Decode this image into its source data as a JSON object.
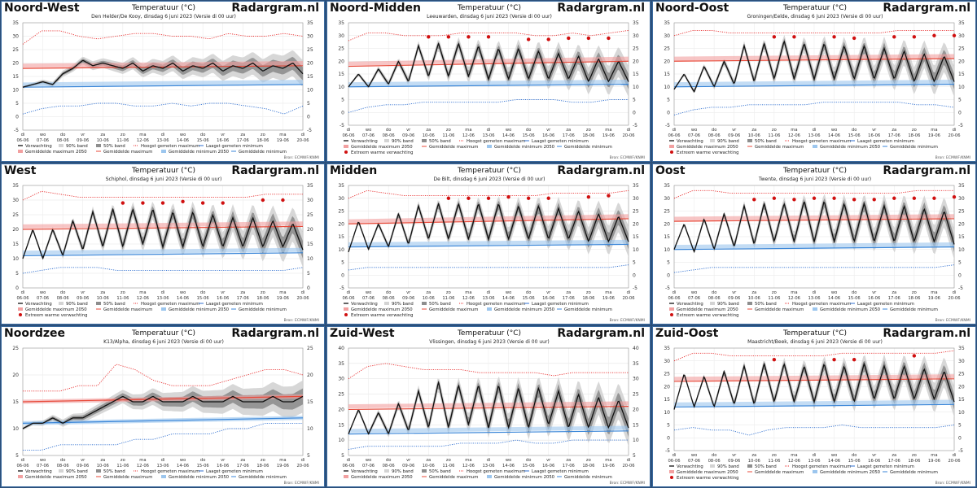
{
  "brand": "Radargram.nl",
  "title": "Temperatuur (°C)",
  "source": "Bron: ECMWF/KNMI",
  "x_days": [
    "di",
    "wo",
    "do",
    "vr",
    "za",
    "zo",
    "ma",
    "di",
    "wo",
    "do",
    "vr",
    "za",
    "zo",
    "ma",
    "di"
  ],
  "x_dates": [
    "06-06",
    "07-06",
    "08-06",
    "09-06",
    "10-06",
    "11-06",
    "12-06",
    "13-06",
    "14-06",
    "15-06",
    "16-06",
    "17-06",
    "18-06",
    "19-06",
    "20-06"
  ],
  "legend_std": [
    "Verwachting",
    "90% band",
    "50% band",
    "Hoogst gemeten maximum",
    "Laagst gemeten minimum",
    "Gemiddelde maximum 2050",
    "Gemiddelde maximum",
    "Gemiddelde minimum 2050",
    "Gemiddelde minimum"
  ],
  "legend_extreme": "Extreem warme verwachting",
  "colors": {
    "forecast": "#111111",
    "band90": "#d3d3d3",
    "band50": "#8e8e8e",
    "record_max": "#e83030",
    "record_min": "#2f6fd0",
    "mean_max": "#e84a3a",
    "mean_max_2050": "#f2a0a0",
    "mean_min": "#3a86d8",
    "mean_min_2050": "#9cc6ee",
    "extreme": "#d01010",
    "frame": "#2b4f7a"
  },
  "panels": [
    {
      "region": "Noord-West",
      "subtitle": "Den Helder/De Kooy, dinsdag 6 juni 2023 (Versie di 00 uur)",
      "ylim": [
        -5,
        35
      ],
      "yticks": [
        -5,
        0,
        5,
        10,
        15,
        20,
        25,
        30,
        35
      ],
      "chart_data": {
        "type": "line",
        "forecast": [
          11,
          12,
          13,
          12,
          16,
          18,
          21,
          19,
          20,
          19,
          18,
          20,
          17,
          19,
          18,
          20,
          17,
          19,
          18,
          20,
          17,
          19,
          18,
          20,
          17,
          19,
          18,
          20,
          16
        ],
        "record_max": [
          27,
          32,
          32,
          30,
          29,
          30,
          31,
          31,
          30,
          30,
          29,
          31,
          30,
          30,
          31,
          30
        ],
        "record_min": [
          1,
          3,
          4,
          4,
          5,
          5,
          4,
          4,
          5,
          4,
          5,
          5,
          4,
          3,
          1,
          4
        ],
        "mean_max": [
          18,
          19
        ],
        "mean_max_2050": [
          19,
          20
        ],
        "mean_min": [
          11,
          12
        ],
        "mean_min_2050": [
          12,
          13
        ],
        "band90_width": [
          0.5,
          5
        ],
        "extreme_points": []
      }
    },
    {
      "region": "Noord-Midden",
      "subtitle": "Leeuwarden, dinsdag 6 juni 2023 (Versie di 00 uur)",
      "ylim": [
        -5,
        35
      ],
      "yticks": [
        -5,
        0,
        5,
        10,
        15,
        20,
        25,
        30,
        35
      ],
      "chart_data": {
        "type": "line",
        "forecast": [
          10,
          15,
          10,
          17,
          11,
          20,
          12,
          26,
          14,
          27,
          14,
          27,
          14,
          26,
          13,
          25,
          13,
          25,
          13,
          24,
          13,
          23,
          13,
          22,
          12,
          21,
          12,
          20,
          12
        ],
        "record_max": [
          28,
          31,
          31,
          30,
          30,
          30,
          31,
          31,
          31,
          31,
          30,
          30,
          31,
          30,
          31,
          32
        ],
        "record_min": [
          0,
          2,
          3,
          3,
          4,
          4,
          4,
          4,
          4,
          5,
          5,
          5,
          4,
          4,
          5,
          5
        ],
        "mean_max": [
          18,
          20
        ],
        "mean_max_2050": [
          19,
          21
        ],
        "mean_min": [
          10,
          11
        ],
        "mean_min_2050": [
          11,
          12
        ],
        "band90_width": [
          0.5,
          6
        ],
        "extreme_points": [
          [
            4,
            29.5
          ],
          [
            5,
            29.5
          ],
          [
            6,
            29.5
          ],
          [
            7,
            29.5
          ],
          [
            9,
            28.5
          ],
          [
            10,
            28.5
          ],
          [
            11,
            29
          ],
          [
            12,
            29
          ],
          [
            13,
            29
          ]
        ]
      }
    },
    {
      "region": "Noord-Oost",
      "subtitle": "Groningen/Eelde, dinsdag 6 juni 2023 (Versie di 00 uur)",
      "ylim": [
        -5,
        35
      ],
      "yticks": [
        -5,
        0,
        5,
        10,
        15,
        20,
        25,
        30,
        35
      ],
      "chart_data": {
        "type": "line",
        "forecast": [
          9,
          15,
          8,
          18,
          10,
          20,
          11,
          26,
          12,
          27,
          13,
          28,
          13,
          27,
          13,
          27,
          13,
          26,
          13,
          26,
          13,
          25,
          13,
          24,
          12,
          23,
          12,
          22,
          12
        ],
        "record_max": [
          30,
          32,
          32,
          31,
          31,
          31,
          31,
          31,
          31,
          31,
          31,
          31,
          32,
          32,
          32,
          32
        ],
        "record_min": [
          -1,
          1,
          2,
          2,
          3,
          3,
          3,
          3,
          4,
          4,
          4,
          4,
          4,
          3,
          3,
          2
        ],
        "mean_max": [
          20,
          21
        ],
        "mean_max_2050": [
          21,
          22
        ],
        "mean_min": [
          10,
          11
        ],
        "mean_min_2050": [
          11,
          12
        ],
        "band90_width": [
          0.5,
          6
        ],
        "extreme_points": [
          [
            5,
            29.5
          ],
          [
            6,
            29.5
          ],
          [
            8,
            29.5
          ],
          [
            9,
            29
          ],
          [
            11,
            29.5
          ],
          [
            12,
            29.5
          ],
          [
            13,
            30
          ],
          [
            14,
            30
          ]
        ]
      }
    },
    {
      "region": "West",
      "subtitle": "Schiphol, dinsdag 6 juni 2023 (Versie di 00 uur)",
      "ylim": [
        0,
        35
      ],
      "yticks": [
        0,
        5,
        10,
        15,
        20,
        25,
        30,
        35
      ],
      "chart_data": {
        "type": "line",
        "forecast": [
          10,
          20,
          10,
          20,
          11,
          23,
          13,
          26,
          14,
          27,
          14,
          27,
          15,
          27,
          14,
          26,
          14,
          26,
          14,
          25,
          14,
          24,
          14,
          24,
          14,
          23,
          14,
          22,
          13
        ],
        "record_max": [
          30,
          33,
          32,
          31,
          31,
          31,
          31,
          31,
          31,
          31,
          31,
          31,
          31,
          32,
          32,
          32
        ],
        "record_min": [
          5,
          6,
          7,
          7,
          7,
          6,
          6,
          6,
          6,
          6,
          6,
          6,
          6,
          6,
          6,
          7
        ],
        "mean_max": [
          20,
          21
        ],
        "mean_max_2050": [
          21,
          22
        ],
        "mean_min": [
          11,
          12
        ],
        "mean_min_2050": [
          12,
          13
        ],
        "band90_width": [
          0.5,
          6
        ],
        "extreme_points": [
          [
            5,
            29
          ],
          [
            6,
            29
          ],
          [
            7,
            29
          ],
          [
            8,
            29.5
          ],
          [
            9,
            29
          ],
          [
            10,
            29
          ],
          [
            12,
            30
          ],
          [
            13,
            30
          ]
        ]
      }
    },
    {
      "region": "Midden",
      "subtitle": "De Bilt, dinsdag 6 juni 2023 (Versie di 00 uur)",
      "ylim": [
        -5,
        35
      ],
      "yticks": [
        -5,
        0,
        5,
        10,
        15,
        20,
        25,
        30,
        35
      ],
      "chart_data": {
        "type": "line",
        "forecast": [
          9,
          21,
          10,
          20,
          11,
          24,
          12,
          27,
          14,
          28,
          14,
          28,
          14,
          28,
          14,
          28,
          14,
          27,
          14,
          27,
          14,
          26,
          14,
          25,
          13,
          24,
          13,
          23,
          13
        ],
        "record_max": [
          30,
          33,
          32,
          31,
          31,
          31,
          31,
          31,
          31,
          31,
          31,
          32,
          32,
          32,
          32,
          33
        ],
        "record_min": [
          2,
          3,
          3,
          3,
          3,
          3,
          3,
          3,
          3,
          3,
          3,
          3,
          3,
          3,
          3,
          4
        ],
        "mean_max": [
          20,
          22
        ],
        "mean_max_2050": [
          21,
          23
        ],
        "mean_min": [
          11,
          12
        ],
        "mean_min_2050": [
          12,
          13
        ],
        "band90_width": [
          0.5,
          6
        ],
        "extreme_points": [
          [
            5,
            30
          ],
          [
            6,
            30
          ],
          [
            7,
            30
          ],
          [
            8,
            30.5
          ],
          [
            9,
            30
          ],
          [
            10,
            30
          ],
          [
            12,
            30.5
          ],
          [
            13,
            31
          ]
        ]
      }
    },
    {
      "region": "Oost",
      "subtitle": "Twente, dinsdag 6 juni 2023 (Versie di 00 uur)",
      "ylim": [
        -5,
        35
      ],
      "yticks": [
        -5,
        0,
        5,
        10,
        15,
        20,
        25,
        30,
        35
      ],
      "chart_data": {
        "type": "line",
        "forecast": [
          10,
          20,
          9,
          22,
          10,
          24,
          11,
          27,
          12,
          28,
          13,
          28,
          13,
          29,
          13,
          29,
          13,
          28,
          13,
          28,
          13,
          27,
          13,
          27,
          13,
          26,
          13,
          25,
          12
        ],
        "record_max": [
          30,
          33,
          33,
          32,
          32,
          32,
          32,
          32,
          32,
          32,
          32,
          32,
          32,
          33,
          33,
          33
        ],
        "record_min": [
          1,
          2,
          3,
          3,
          3,
          3,
          3,
          3,
          3,
          3,
          3,
          3,
          3,
          3,
          3,
          4
        ],
        "mean_max": [
          21,
          22
        ],
        "mean_max_2050": [
          22,
          23
        ],
        "mean_min": [
          10,
          11
        ],
        "mean_min_2050": [
          11,
          12
        ],
        "band90_width": [
          0.5,
          6
        ],
        "extreme_points": [
          [
            4,
            29.5
          ],
          [
            5,
            30
          ],
          [
            6,
            29.5
          ],
          [
            7,
            30
          ],
          [
            8,
            30
          ],
          [
            9,
            29.5
          ],
          [
            10,
            29.5
          ],
          [
            11,
            30
          ],
          [
            12,
            30
          ],
          [
            13,
            30
          ],
          [
            14,
            30.5
          ]
        ]
      }
    },
    {
      "region": "Noordzee",
      "subtitle": "K13/Alpha, dinsdag 6 juni 2023 (Versie di 00 uur)",
      "ylim": [
        5,
        25
      ],
      "yticks": [
        5,
        10,
        15,
        20,
        25
      ],
      "chart_data": {
        "type": "line",
        "forecast": [
          10,
          11,
          11,
          12,
          11,
          12,
          12,
          13,
          14,
          15,
          16,
          15,
          15,
          16,
          15,
          15,
          15,
          16,
          15,
          15,
          15,
          16,
          15,
          15,
          15,
          16,
          15,
          15,
          16
        ],
        "record_max": [
          17,
          17,
          17,
          18,
          18,
          22,
          21,
          19,
          18,
          18,
          18,
          19,
          20,
          21,
          21,
          20
        ],
        "record_min": [
          6,
          6,
          7,
          7,
          7,
          7,
          8,
          8,
          9,
          9,
          9,
          10,
          10,
          11,
          11,
          11
        ],
        "mean_max": [
          15,
          16
        ],
        "mean_max_2050": [
          15,
          16
        ],
        "mean_min": [
          11,
          12
        ],
        "mean_min_2050": [
          11,
          12
        ],
        "band90_width": [
          0.3,
          3
        ],
        "extreme_points": []
      }
    },
    {
      "region": "Zuid-West",
      "subtitle": "Vlissingen, dinsdag 6 juni 2023 (Versie di 00 uur)",
      "ylim": [
        5,
        40
      ],
      "yticks": [
        5,
        10,
        15,
        20,
        25,
        30,
        35,
        40
      ],
      "chart_data": {
        "type": "line",
        "forecast": [
          12,
          20,
          12,
          19,
          12,
          22,
          13,
          26,
          14,
          29,
          14,
          28,
          15,
          28,
          14,
          28,
          14,
          27,
          14,
          27,
          15,
          26,
          14,
          25,
          14,
          24,
          14,
          23,
          14
        ],
        "record_max": [
          30,
          34,
          35,
          34,
          33,
          33,
          33,
          32,
          32,
          32,
          32,
          31,
          32,
          32,
          32,
          32
        ],
        "record_min": [
          7,
          8,
          8,
          8,
          8,
          8,
          9,
          9,
          9,
          10,
          9,
          9,
          10,
          10,
          10,
          10
        ],
        "mean_max": [
          20,
          21
        ],
        "mean_max_2050": [
          21,
          22
        ],
        "mean_min": [
          12,
          13
        ],
        "mean_min_2050": [
          13,
          14
        ],
        "band90_width": [
          0.5,
          6
        ],
        "extreme_points": []
      }
    },
    {
      "region": "Zuid-Oost",
      "subtitle": "Maastricht/Beek, dinsdag 6 juni 2023 (Versie di 00 uur)",
      "ylim": [
        -5,
        35
      ],
      "yticks": [
        -5,
        0,
        5,
        10,
        15,
        20,
        25,
        30,
        35
      ],
      "chart_data": {
        "type": "line",
        "forecast": [
          11,
          25,
          12,
          24,
          12,
          26,
          13,
          28,
          13,
          29,
          14,
          29,
          14,
          28,
          14,
          29,
          14,
          28,
          14,
          29,
          15,
          28,
          15,
          28,
          15,
          27,
          15,
          26,
          14
        ],
        "record_max": [
          30,
          33,
          33,
          32,
          32,
          32,
          32,
          32,
          32,
          33,
          33,
          33,
          33,
          33,
          33,
          34
        ],
        "record_min": [
          3,
          4,
          3,
          3,
          1,
          3,
          4,
          4,
          4,
          5,
          4,
          4,
          4,
          4,
          4,
          5
        ],
        "mean_max": [
          22,
          23
        ],
        "mean_max_2050": [
          23,
          24
        ],
        "mean_min": [
          12,
          13
        ],
        "mean_min_2050": [
          13,
          14
        ],
        "band90_width": [
          0.5,
          6
        ],
        "extreme_points": [
          [
            5,
            30.5
          ],
          [
            8,
            30.5
          ],
          [
            9,
            30.5
          ],
          [
            12,
            32
          ]
        ]
      }
    }
  ]
}
